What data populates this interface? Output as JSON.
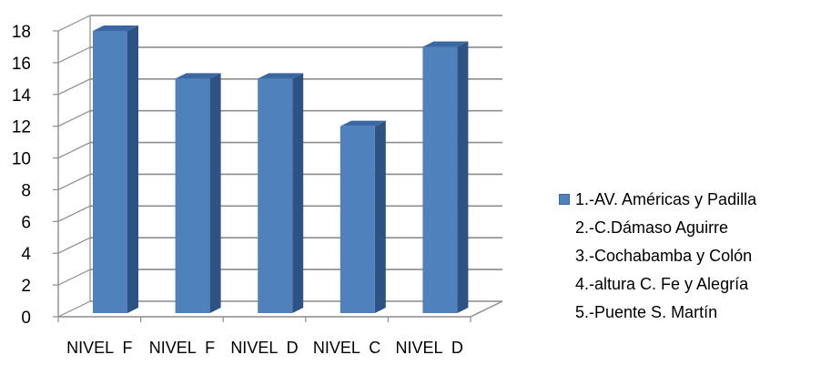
{
  "chart_data": {
    "type": "bar",
    "categories": [
      "NIVEL  F",
      "NIVEL  F",
      "NIVEL  D",
      "NIVEL  C",
      "NIVEL  D"
    ],
    "values": [
      18,
      15,
      15,
      12,
      17
    ],
    "ylim": [
      0,
      18
    ],
    "yticks": [
      "0",
      "2",
      "4",
      "6",
      "8",
      "10",
      "12",
      "14",
      "16",
      "18"
    ],
    "grid": true,
    "three_d": true,
    "legend_position": "right",
    "legend_entries": [
      "1.-AV. Américas y Padilla",
      "2.-C.Dámaso  Aguirre",
      "3.-Cochabamba y Colón",
      "4.-altura C. Fe y Alegría",
      "5.-Puente S. Martín"
    ],
    "legend_swatch_entry": 0,
    "colors": {
      "bar_front": "#4f81bd",
      "bar_side": "#2d5385",
      "bar_top": "#3b68a3",
      "gridline": "#8c8c8c",
      "axis": "#8c8c8c"
    }
  }
}
